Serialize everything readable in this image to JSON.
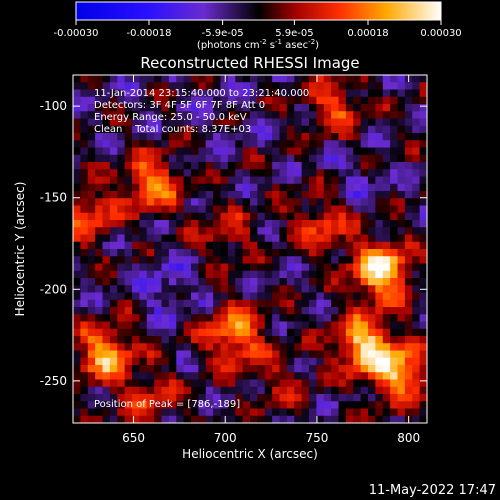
{
  "chart_data": {
    "type": "heatmap",
    "title": "Reconstructed RHESSI Image",
    "xlabel": "Heliocentric X (arcsec)",
    "ylabel": "Heliocentric Y (arcsec)",
    "xlim": [
      617,
      810
    ],
    "ylim": [
      -273,
      -83
    ],
    "x_ticks": [
      650,
      700,
      750,
      800
    ],
    "y_ticks": [
      -100,
      -150,
      -200,
      -250
    ],
    "colorbar": {
      "label_units": "(photons cm",
      "label_exp1": "-2",
      "label_s": " s",
      "label_exp2": "-1",
      "label_asec": " asec",
      "label_exp3": "-2",
      "label_close": ")",
      "range": [
        -0.0003,
        0.0003
      ],
      "tick_labels": [
        "-0.00030",
        "-0.00018",
        "-5.9e-05",
        "5.9e-05",
        "0.00018",
        "0.00030"
      ],
      "tick_values": [
        -0.0003,
        -0.00018,
        -5.9e-05,
        5.9e-05,
        0.00018,
        0.0003
      ]
    },
    "annotations": {
      "time_range": "11-Jan-2014 23:15:40.000 to 23:21:40.000",
      "detectors": "Detectors: 3F 4F 5F 6F 7F 8F  Att 0",
      "energy_range": "Energy Range: 25.0 - 50.0 keV",
      "method_counts": "Clean    Total counts: 8.37E+03",
      "peak": "Position of Peak = [786,-189]"
    },
    "peak_position": [
      786,
      -189
    ],
    "bright_regions": [
      {
        "x": 785,
        "y": -190,
        "level": 0.0003
      },
      {
        "x": 775,
        "y": -230,
        "level": 0.00026
      },
      {
        "x": 795,
        "y": -245,
        "level": 0.00024
      },
      {
        "x": 635,
        "y": -235,
        "level": 0.00024
      },
      {
        "x": 705,
        "y": -225,
        "level": 0.00022
      },
      {
        "x": 660,
        "y": -142,
        "level": 0.0002
      },
      {
        "x": 625,
        "y": -160,
        "level": 0.00016
      },
      {
        "x": 760,
        "y": -100,
        "level": 0.00015
      },
      {
        "x": 752,
        "y": -165,
        "level": 0.00014
      },
      {
        "x": 700,
        "y": -170,
        "level": 0.0001
      },
      {
        "x": 660,
        "y": -262,
        "level": 0.00012
      },
      {
        "x": 730,
        "y": -250,
        "level": 8e-05
      }
    ],
    "negative_regions": [
      {
        "x": 668,
        "y": -200,
        "level": -8e-05
      },
      {
        "x": 770,
        "y": -140,
        "level": -5e-05
      },
      {
        "x": 700,
        "y": -100,
        "level": -3e-05
      }
    ]
  },
  "footer": {
    "timestamp": "11-May-2022 17:47"
  }
}
